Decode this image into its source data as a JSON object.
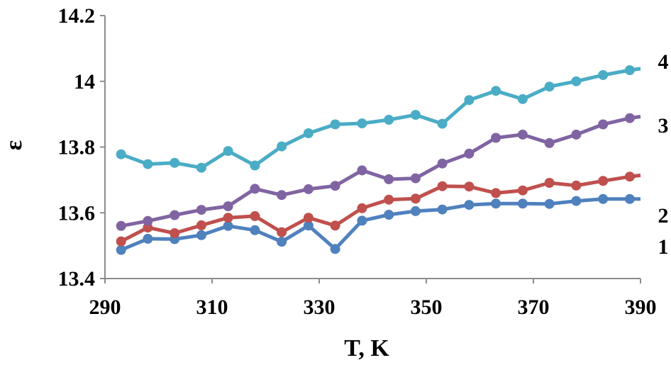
{
  "chart_data": {
    "type": "line",
    "title": "",
    "xlabel": "T, K",
    "ylabel": "ε",
    "xlim": [
      290,
      390
    ],
    "ylim": [
      13.4,
      14.2
    ],
    "xticks": [
      "290",
      "310",
      "330",
      "350",
      "370",
      "390"
    ],
    "yticks": [
      "13.4",
      "13.6",
      "13.8",
      "14",
      "14.2"
    ],
    "grid": false,
    "x": [
      293,
      298,
      303,
      308,
      313,
      318,
      323,
      328,
      333,
      338,
      343,
      348,
      353,
      358,
      363,
      368,
      373,
      378,
      383,
      388,
      393
    ],
    "series": [
      {
        "name": "1",
        "color": "#4f81bd",
        "values": [
          13.487,
          13.521,
          13.52,
          13.532,
          13.56,
          13.547,
          13.512,
          13.561,
          13.49,
          13.576,
          13.594,
          13.605,
          13.61,
          13.624,
          13.628,
          13.628,
          13.627,
          13.636,
          13.642,
          13.642,
          13.642
        ]
      },
      {
        "name": "2",
        "color": "#c0504d",
        "values": [
          13.513,
          13.555,
          13.538,
          13.562,
          13.585,
          13.59,
          13.541,
          13.585,
          13.561,
          13.614,
          13.64,
          13.643,
          13.681,
          13.68,
          13.66,
          13.668,
          13.691,
          13.683,
          13.697,
          13.71,
          13.72
        ]
      },
      {
        "name": "3",
        "color": "#8064a2",
        "values": [
          13.56,
          13.575,
          13.593,
          13.609,
          13.62,
          13.673,
          13.654,
          13.672,
          13.682,
          13.729,
          13.702,
          13.705,
          13.75,
          13.78,
          13.828,
          13.838,
          13.812,
          13.838,
          13.869,
          13.888,
          13.9
        ]
      },
      {
        "name": "4",
        "color": "#4bacc6",
        "values": [
          13.778,
          13.748,
          13.752,
          13.737,
          13.788,
          13.744,
          13.802,
          13.842,
          13.869,
          13.872,
          13.883,
          13.898,
          13.871,
          13.943,
          13.971,
          13.946,
          13.984,
          14.0,
          14.019,
          14.034,
          14.045
        ]
      }
    ]
  }
}
